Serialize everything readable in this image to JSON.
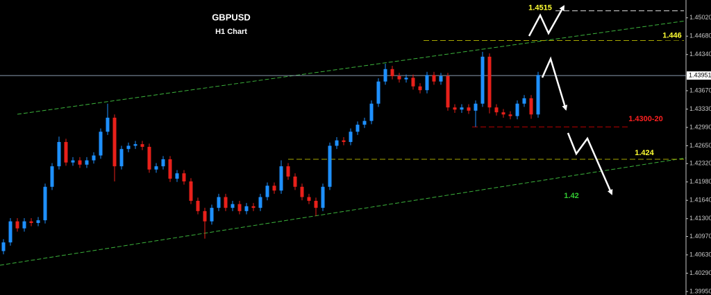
{
  "chart_data": {
    "type": "candlestick",
    "title": "GBPUSD",
    "subtitle": "H1 Chart",
    "up_color": "#1e90ff",
    "down_color": "#e8201a",
    "ylim": [
      1.3995,
      1.4535
    ],
    "yticks": [
      {
        "value": 1.4502,
        "label": "1.45020"
      },
      {
        "value": 1.4468,
        "label": "1.44680"
      },
      {
        "value": 1.4434,
        "label": "1.44340"
      },
      {
        "value": 1.4367,
        "label": "1.43670"
      },
      {
        "value": 1.4333,
        "label": "1.43330"
      },
      {
        "value": 1.4299,
        "label": "1.42990"
      },
      {
        "value": 1.4265,
        "label": "1.42650"
      },
      {
        "value": 1.4232,
        "label": "1.42320"
      },
      {
        "value": 1.4198,
        "label": "1.41980"
      },
      {
        "value": 1.4164,
        "label": "1.41640"
      },
      {
        "value": 1.413,
        "label": "1.41300"
      },
      {
        "value": 1.4097,
        "label": "1.40970"
      },
      {
        "value": 1.4063,
        "label": "1.40630"
      },
      {
        "value": 1.4029,
        "label": "1.40290"
      },
      {
        "value": 1.3995,
        "label": "1.39950"
      }
    ],
    "grid": false,
    "current_price": 1.43951,
    "open": [
      1.407,
      1.4086,
      1.4125,
      1.4112,
      1.4125,
      1.4122,
      1.4127,
      1.4189,
      1.4227,
      1.4272,
      1.4234,
      1.4238,
      1.423,
      1.4238,
      1.4247,
      1.4291,
      1.4317,
      1.4227,
      1.4259,
      1.4265,
      1.4268,
      1.4263,
      1.4221,
      1.4227,
      1.424,
      1.4204,
      1.4214,
      1.4199,
      1.4163,
      1.4144,
      1.4125,
      1.415,
      1.417,
      1.415,
      1.4157,
      1.4144,
      1.4153,
      1.415,
      1.417,
      1.4191,
      1.4182,
      1.4227,
      1.4208,
      1.4189,
      1.417,
      1.4163,
      1.415,
      1.4189,
      1.4265,
      1.4275,
      1.4272,
      1.4291,
      1.4304,
      1.4311,
      1.4343,
      1.4384,
      1.4407,
      1.4394,
      1.4388,
      1.4391,
      1.4375,
      1.4368,
      1.4396,
      1.4384,
      1.4394,
      1.4336,
      1.4332,
      1.4336,
      1.433,
      1.4343,
      1.443,
      1.4336,
      1.4327,
      1.4323,
      1.432,
      1.4343,
      1.4353,
      1.4323
    ],
    "high": [
      1.4092,
      1.4131,
      1.4131,
      1.4131,
      1.4131,
      1.4133,
      1.4195,
      1.4233,
      1.4282,
      1.4278,
      1.4244,
      1.4244,
      1.4244,
      1.4253,
      1.4297,
      1.4343,
      1.4323,
      1.4265,
      1.4271,
      1.4274,
      1.4274,
      1.4269,
      1.4233,
      1.4246,
      1.4246,
      1.422,
      1.422,
      1.4205,
      1.4169,
      1.415,
      1.4156,
      1.4176,
      1.4176,
      1.4163,
      1.4163,
      1.4159,
      1.4159,
      1.4176,
      1.4197,
      1.4197,
      1.4238,
      1.4233,
      1.4214,
      1.4195,
      1.4176,
      1.4169,
      1.4195,
      1.4271,
      1.4281,
      1.4281,
      1.4297,
      1.431,
      1.4317,
      1.4349,
      1.439,
      1.4417,
      1.4413,
      1.44,
      1.4397,
      1.4397,
      1.4381,
      1.4402,
      1.4402,
      1.44,
      1.44,
      1.4342,
      1.4342,
      1.4342,
      1.4349,
      1.4439,
      1.4436,
      1.4342,
      1.4333,
      1.4329,
      1.4349,
      1.4359,
      1.4359,
      1.4402
    ],
    "low": [
      1.4064,
      1.408,
      1.4106,
      1.4106,
      1.4116,
      1.4116,
      1.4121,
      1.4183,
      1.4221,
      1.4228,
      1.4228,
      1.4224,
      1.4224,
      1.4232,
      1.4241,
      1.4285,
      1.4199,
      1.4221,
      1.4253,
      1.4259,
      1.4257,
      1.4215,
      1.4215,
      1.4221,
      1.4198,
      1.4198,
      1.4193,
      1.4157,
      1.4138,
      1.4093,
      1.4119,
      1.4144,
      1.4144,
      1.4144,
      1.4138,
      1.4138,
      1.4144,
      1.4144,
      1.4164,
      1.4176,
      1.4176,
      1.4202,
      1.4183,
      1.4164,
      1.4157,
      1.4135,
      1.4144,
      1.4183,
      1.4259,
      1.4266,
      1.4266,
      1.4285,
      1.4298,
      1.4305,
      1.4337,
      1.4378,
      1.4388,
      1.4382,
      1.4382,
      1.4369,
      1.4362,
      1.4362,
      1.4378,
      1.4378,
      1.433,
      1.4326,
      1.4326,
      1.4324,
      1.43,
      1.4337,
      1.4325,
      1.4321,
      1.4317,
      1.4314,
      1.4314,
      1.4337,
      1.4315,
      1.4317
    ],
    "close": [
      1.4086,
      1.4125,
      1.4112,
      1.4125,
      1.4122,
      1.4127,
      1.4189,
      1.4227,
      1.4272,
      1.4234,
      1.4238,
      1.423,
      1.4238,
      1.4247,
      1.4291,
      1.4317,
      1.4227,
      1.4259,
      1.4265,
      1.4268,
      1.4263,
      1.4221,
      1.4227,
      1.424,
      1.4204,
      1.4214,
      1.4199,
      1.4163,
      1.4144,
      1.4125,
      1.415,
      1.417,
      1.415,
      1.4157,
      1.4144,
      1.4153,
      1.415,
      1.417,
      1.4191,
      1.4182,
      1.4227,
      1.4208,
      1.4189,
      1.417,
      1.4163,
      1.415,
      1.4189,
      1.4265,
      1.4275,
      1.4272,
      1.4291,
      1.4304,
      1.4311,
      1.4343,
      1.4384,
      1.4407,
      1.4394,
      1.4388,
      1.4391,
      1.4375,
      1.4368,
      1.4396,
      1.4384,
      1.4394,
      1.4336,
      1.4332,
      1.4336,
      1.433,
      1.4343,
      1.443,
      1.4336,
      1.4327,
      1.4323,
      1.432,
      1.4343,
      1.4353,
      1.4323,
      1.4396
    ],
    "levels": [
      {
        "value": 1.4515,
        "color": "#ffff33",
        "line_color": "#dddddd"
      },
      {
        "value": 1.446,
        "color": "#ffff33",
        "line_color": "#a8a800"
      },
      {
        "value": 1.43,
        "label": "1.4300-20",
        "color": "#ff2020",
        "line_color": "#c00000"
      },
      {
        "value": 1.424,
        "color": "#ffff33",
        "line_color": "#a8a800"
      },
      {
        "value": 1.42,
        "color": "#33cc33"
      }
    ]
  }
}
